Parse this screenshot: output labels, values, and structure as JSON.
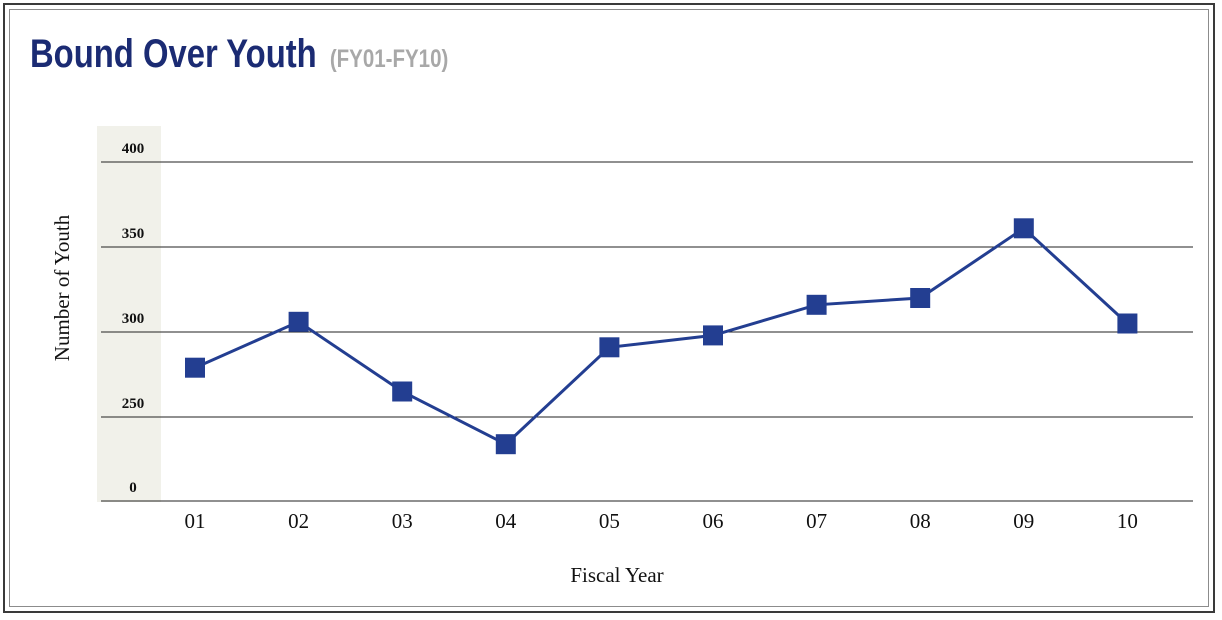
{
  "header": {
    "title": "Bound Over Youth",
    "subtitle": "(FY01-FY10)"
  },
  "colors": {
    "title": "#1b2b73",
    "subtitle": "#a8a8a8",
    "series": "#233e91",
    "y_band": "#f1f1ea",
    "gridline": "#222222"
  },
  "chart_data": {
    "type": "line",
    "title": "Bound Over Youth",
    "subtitle": "(FY01-FY10)",
    "xlabel": "Fiscal Year",
    "ylabel": "Number of Youth",
    "categories": [
      "01",
      "02",
      "03",
      "04",
      "05",
      "06",
      "07",
      "08",
      "09",
      "10"
    ],
    "y_ticks": [
      "400",
      "350",
      "300",
      "250",
      "0"
    ],
    "y_tick_values": [
      400,
      350,
      300,
      250,
      0
    ],
    "y_axis_break": true,
    "values": [
      279,
      306,
      265,
      234,
      291,
      298,
      316,
      320,
      361,
      305
    ],
    "grid": true,
    "legend": "none"
  }
}
